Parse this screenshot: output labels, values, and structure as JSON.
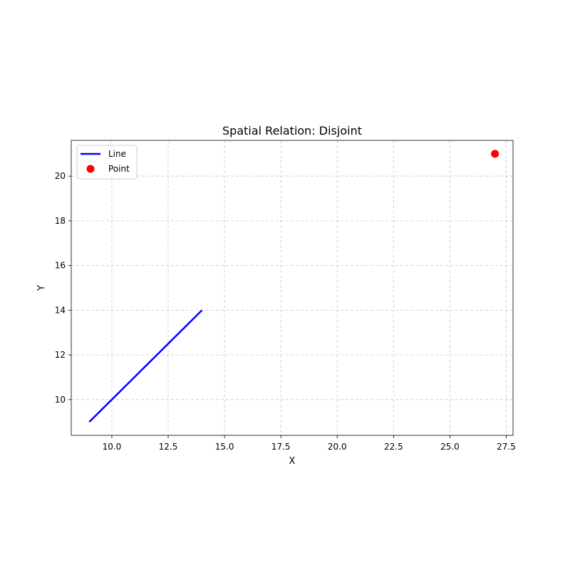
{
  "chart_data": {
    "type": "line",
    "title": "Spatial Relation: Disjoint",
    "xlabel": "X",
    "ylabel": "Y",
    "xlim": [
      8.2,
      27.8
    ],
    "ylim": [
      8.4,
      21.6
    ],
    "xticks": [
      10.0,
      12.5,
      15.0,
      17.5,
      20.0,
      22.5,
      25.0,
      27.5
    ],
    "xtick_labels": [
      "10.0",
      "12.5",
      "15.0",
      "17.5",
      "20.0",
      "22.5",
      "25.0",
      "27.5"
    ],
    "yticks": [
      10,
      12,
      14,
      16,
      18,
      20
    ],
    "ytick_labels": [
      "10",
      "12",
      "14",
      "16",
      "18",
      "20"
    ],
    "grid": true,
    "legend_position": "top-left",
    "series": [
      {
        "name": "Line",
        "kind": "line",
        "color": "#0000ff",
        "x": [
          9,
          14
        ],
        "y": [
          9,
          14
        ]
      },
      {
        "name": "Point",
        "kind": "scatter",
        "color": "#ff0000",
        "x": [
          27
        ],
        "y": [
          21
        ]
      }
    ]
  }
}
